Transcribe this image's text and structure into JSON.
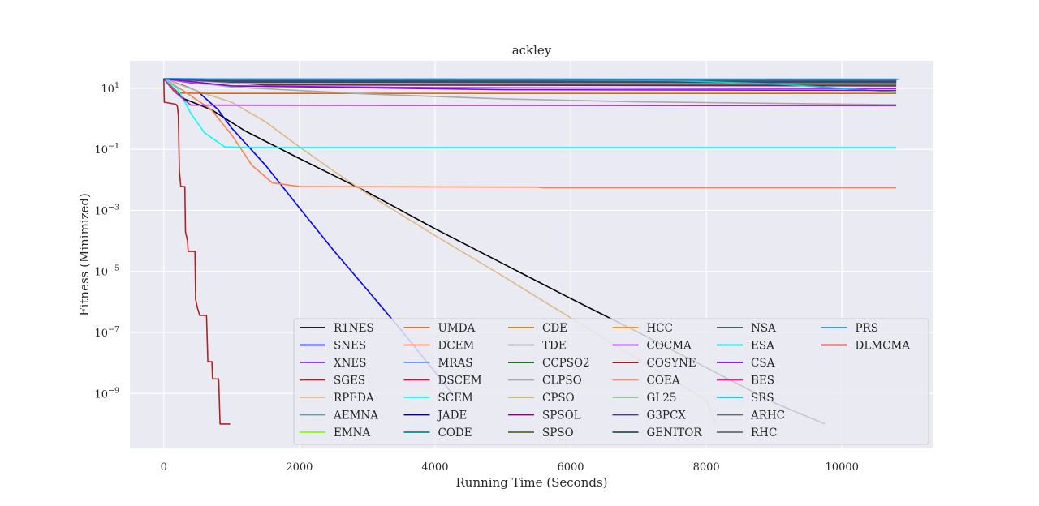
{
  "chart_data": {
    "type": "line",
    "title": "ackley",
    "xlabel": "Running Time (Seconds)",
    "ylabel": "Fitness (Minimized)",
    "xlim": [
      -500,
      11350
    ],
    "ylim_log10": [
      -10.8,
      1.9
    ],
    "y_scale": "log",
    "grid": true,
    "legend_placement": "lower-right",
    "legend_columns": 6,
    "x_ticks": [
      0,
      2000,
      4000,
      6000,
      8000,
      10000
    ],
    "x_tick_labels": [
      "0",
      "2000",
      "4000",
      "6000",
      "8000",
      "10000"
    ],
    "y_ticks_log10": [
      1,
      -1,
      -3,
      -5,
      -7,
      -9
    ],
    "y_tick_labels": [
      {
        "base": "10",
        "exp": "1"
      },
      {
        "base": "10",
        "exp": "−1"
      },
      {
        "base": "10",
        "exp": "−3"
      },
      {
        "base": "10",
        "exp": "−5"
      },
      {
        "base": "10",
        "exp": "−7"
      },
      {
        "base": "10",
        "exp": "−9"
      }
    ],
    "series": [
      {
        "name": "R1NES",
        "color": "#000000",
        "points": [
          [
            0,
            20.5
          ],
          [
            300,
            4.5
          ],
          [
            700,
            2
          ],
          [
            1200,
            0.4
          ],
          [
            2000,
            0.05
          ],
          [
            3000,
            0.004
          ],
          [
            4000,
            0.00025
          ],
          [
            5000,
            1.8e-05
          ],
          [
            6000,
            1.3e-06
          ],
          [
            7000,
            1e-07
          ],
          [
            8000,
            7e-09
          ],
          [
            9000,
            5e-10
          ],
          [
            9750,
            1e-10
          ]
        ]
      },
      {
        "name": "SNES",
        "color": "#0000ff",
        "points": [
          [
            0,
            20.5
          ],
          [
            300,
            12
          ],
          [
            500,
            8
          ],
          [
            800,
            2
          ],
          [
            1000,
            0.5
          ],
          [
            1500,
            0.03
          ],
          [
            2000,
            0.0012
          ],
          [
            2500,
            5e-05
          ],
          [
            3000,
            2.5e-06
          ],
          [
            3500,
            1.2e-07
          ],
          [
            4000,
            5e-09
          ],
          [
            4250,
            1e-09
          ]
        ]
      },
      {
        "name": "XNES",
        "color": "#8a2be2",
        "points": [
          [
            0,
            20.5
          ],
          [
            400,
            15
          ],
          [
            1000,
            12
          ],
          [
            4000,
            10.5
          ],
          [
            8000,
            10
          ],
          [
            10800,
            9.8
          ]
        ]
      },
      {
        "name": "SGES",
        "color": "#a52a2a",
        "points": [
          [
            0,
            20.5
          ],
          [
            500,
            20
          ],
          [
            1000,
            19.8
          ],
          [
            10800,
            19.5
          ]
        ]
      },
      {
        "name": "RPEDA",
        "color": "#deb887",
        "points": [
          [
            0,
            20.5
          ],
          [
            500,
            8
          ],
          [
            1000,
            3.5
          ],
          [
            1500,
            0.8
          ],
          [
            2000,
            0.12
          ],
          [
            2500,
            0.02
          ],
          [
            3000,
            0.0035
          ],
          [
            4000,
            0.00015
          ],
          [
            5000,
            7e-06
          ],
          [
            6000,
            3e-07
          ],
          [
            7000,
            1.3e-08
          ],
          [
            8000,
            6e-10
          ],
          [
            8150,
            1e-10
          ]
        ]
      },
      {
        "name": "AEMNA",
        "color": "#5f9ea0",
        "points": [
          [
            0,
            20.5
          ],
          [
            500,
            19.5
          ],
          [
            10800,
            19
          ]
        ]
      },
      {
        "name": "EMNA",
        "color": "#7fff00",
        "points": [
          [
            0,
            20.5
          ],
          [
            500,
            19.8
          ],
          [
            10800,
            19.5
          ]
        ]
      },
      {
        "name": "UMDA",
        "color": "#d2691e",
        "points": [
          [
            0,
            20.5
          ],
          [
            80,
            14
          ],
          [
            200,
            7
          ],
          [
            600,
            6.8
          ],
          [
            10800,
            6.8
          ]
        ]
      },
      {
        "name": "DCEM",
        "color": "#ff7f50",
        "points": [
          [
            0,
            20.5
          ],
          [
            300,
            8
          ],
          [
            700,
            2
          ],
          [
            1000,
            0.3
          ],
          [
            1300,
            0.03
          ],
          [
            1600,
            0.008
          ],
          [
            2000,
            0.006
          ],
          [
            5500,
            0.0058
          ],
          [
            5600,
            0.0055
          ],
          [
            10800,
            0.0055
          ]
        ]
      },
      {
        "name": "MRAS",
        "color": "#6495ed",
        "points": [
          [
            0,
            20.5
          ],
          [
            500,
            20
          ],
          [
            10800,
            19.8
          ]
        ]
      },
      {
        "name": "DSCEM",
        "color": "#dc143c",
        "points": [
          [
            0,
            20.5
          ],
          [
            500,
            20
          ],
          [
            10800,
            19.6
          ]
        ]
      },
      {
        "name": "SCEM",
        "color": "#00ffff",
        "points": [
          [
            0,
            20.5
          ],
          [
            200,
            10
          ],
          [
            400,
            1.5
          ],
          [
            600,
            0.35
          ],
          [
            900,
            0.12
          ],
          [
            1200,
            0.115
          ],
          [
            10800,
            0.115
          ]
        ]
      },
      {
        "name": "JADE",
        "color": "#00008b",
        "points": [
          [
            0,
            20.5
          ],
          [
            1000,
            16
          ],
          [
            10800,
            15.8
          ]
        ]
      },
      {
        "name": "CODE",
        "color": "#008b8b",
        "points": [
          [
            0,
            20.5
          ],
          [
            3000,
            19
          ],
          [
            8000,
            16
          ],
          [
            10800,
            13.5
          ]
        ]
      },
      {
        "name": "CDE",
        "color": "#b8860b",
        "points": [
          [
            0,
            20.5
          ],
          [
            3000,
            18.5
          ],
          [
            10800,
            17.5
          ]
        ]
      },
      {
        "name": "TDE",
        "color": "#a9a9a9",
        "points": [
          [
            0,
            20.5
          ],
          [
            1000,
            11
          ],
          [
            3000,
            6.5
          ],
          [
            5000,
            4.5
          ],
          [
            7000,
            3.6
          ],
          [
            10800,
            2.9
          ]
        ]
      },
      {
        "name": "CCPSO2",
        "color": "#006400",
        "points": [
          [
            0,
            20.5
          ],
          [
            2000,
            14
          ],
          [
            10800,
            13.5
          ]
        ]
      },
      {
        "name": "CLPSO",
        "color": "#a9a9a9",
        "points": [
          [
            0,
            20.5
          ],
          [
            2000,
            17
          ],
          [
            10800,
            16.5
          ]
        ]
      },
      {
        "name": "CPSO",
        "color": "#bdb76b",
        "points": [
          [
            0,
            20.5
          ],
          [
            2000,
            16
          ],
          [
            10800,
            15.5
          ]
        ]
      },
      {
        "name": "SPSOL",
        "color": "#8b008b",
        "points": [
          [
            0,
            20.5
          ],
          [
            1500,
            13
          ],
          [
            10800,
            12
          ]
        ]
      },
      {
        "name": "SPSO",
        "color": "#556b2f",
        "points": [
          [
            0,
            20.5
          ],
          [
            1500,
            14
          ],
          [
            10800,
            13
          ]
        ]
      },
      {
        "name": "HCC",
        "color": "#ff8c00",
        "points": [
          [
            0,
            20.5
          ],
          [
            1500,
            15
          ],
          [
            10800,
            14.5
          ]
        ]
      },
      {
        "name": "COCMA",
        "color": "#9932cc",
        "points": [
          [
            0,
            20.5
          ],
          [
            150,
            8
          ],
          [
            400,
            2.8
          ],
          [
            10800,
            2.7
          ]
        ]
      },
      {
        "name": "COSYNE",
        "color": "#8b0000",
        "points": [
          [
            0,
            20.5
          ],
          [
            1000,
            18
          ],
          [
            10800,
            17.5
          ]
        ]
      },
      {
        "name": "COEA",
        "color": "#e9967a",
        "points": [
          [
            0,
            20.5
          ],
          [
            1000,
            17
          ],
          [
            10800,
            16.5
          ]
        ]
      },
      {
        "name": "GL25",
        "color": "#8fbc8f",
        "points": [
          [
            0,
            20.5
          ],
          [
            1000,
            15
          ],
          [
            10800,
            14
          ]
        ]
      },
      {
        "name": "G3PCX",
        "color": "#483d8b",
        "points": [
          [
            0,
            20.5
          ],
          [
            1000,
            16
          ],
          [
            10800,
            15.5
          ]
        ]
      },
      {
        "name": "GENITOR",
        "color": "#2f4f4f",
        "points": [
          [
            0,
            20.5
          ],
          [
            1000,
            17.5
          ],
          [
            10800,
            17
          ]
        ]
      },
      {
        "name": "NSA",
        "color": "#2f4f4f",
        "points": [
          [
            0,
            20.5
          ],
          [
            1000,
            18.5
          ],
          [
            10800,
            18
          ]
        ]
      },
      {
        "name": "ESA",
        "color": "#00ced1",
        "points": [
          [
            0,
            20.5
          ],
          [
            7500,
            18
          ],
          [
            9000,
            14
          ],
          [
            10000,
            10
          ],
          [
            10800,
            7.5
          ]
        ]
      },
      {
        "name": "CSA",
        "color": "#9400d3",
        "points": [
          [
            0,
            20.5
          ],
          [
            1000,
            12
          ],
          [
            5000,
            9
          ],
          [
            10800,
            8.5
          ]
        ]
      },
      {
        "name": "BES",
        "color": "#ff1493",
        "points": [
          [
            0,
            20.5
          ],
          [
            1000,
            19.5
          ],
          [
            10800,
            19
          ]
        ]
      },
      {
        "name": "SRS",
        "color": "#00bfff",
        "points": [
          [
            0,
            20.5
          ],
          [
            1000,
            20
          ],
          [
            10800,
            19.8
          ]
        ]
      },
      {
        "name": "ARHC",
        "color": "#696969",
        "points": [
          [
            0,
            20.5
          ],
          [
            1000,
            19
          ],
          [
            10800,
            18.5
          ]
        ]
      },
      {
        "name": "RHC",
        "color": "#696969",
        "points": [
          [
            0,
            20.5
          ],
          [
            1000,
            19.5
          ],
          [
            10800,
            19
          ]
        ]
      },
      {
        "name": "PRS",
        "color": "#1e90ff",
        "points": [
          [
            0,
            20.5
          ],
          [
            1000,
            20
          ],
          [
            10850,
            19.8
          ]
        ]
      },
      {
        "name": "DLMCMA",
        "color": "#b22222",
        "points": [
          [
            0,
            20.5
          ],
          [
            8,
            3.5
          ],
          [
            180,
            3
          ],
          [
            200,
            2.6
          ],
          [
            215,
            1.3
          ],
          [
            220,
            0.25
          ],
          [
            230,
            0.02
          ],
          [
            250,
            0.006
          ],
          [
            310,
            0.006
          ],
          [
            320,
            0.0002
          ],
          [
            350,
            0.0001
          ],
          [
            360,
            4.5e-05
          ],
          [
            460,
            4.5e-05
          ],
          [
            470,
            1.2e-06
          ],
          [
            500,
            6e-07
          ],
          [
            530,
            3.6e-07
          ],
          [
            630,
            3.6e-07
          ],
          [
            650,
            1.1e-08
          ],
          [
            710,
            1.1e-08
          ],
          [
            720,
            3e-09
          ],
          [
            810,
            3e-09
          ],
          [
            830,
            1e-10
          ],
          [
            980,
            1e-10
          ]
        ]
      }
    ]
  }
}
